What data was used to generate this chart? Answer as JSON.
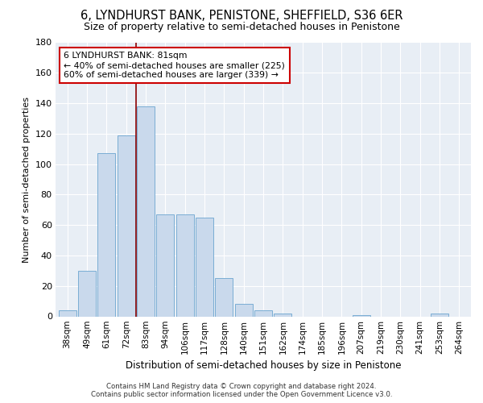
{
  "title": "6, LYNDHURST BANK, PENISTONE, SHEFFIELD, S36 6ER",
  "subtitle": "Size of property relative to semi-detached houses in Penistone",
  "xlabel": "Distribution of semi-detached houses by size in Penistone",
  "ylabel": "Number of semi-detached properties",
  "bins": [
    "38sqm",
    "49sqm",
    "61sqm",
    "72sqm",
    "83sqm",
    "94sqm",
    "106sqm",
    "117sqm",
    "128sqm",
    "140sqm",
    "151sqm",
    "162sqm",
    "174sqm",
    "185sqm",
    "196sqm",
    "207sqm",
    "219sqm",
    "230sqm",
    "241sqm",
    "253sqm",
    "264sqm"
  ],
  "values": [
    4,
    30,
    107,
    119,
    138,
    67,
    67,
    65,
    25,
    8,
    4,
    2,
    0,
    0,
    0,
    1,
    0,
    0,
    0,
    2,
    0
  ],
  "bar_color": "#c9d9ec",
  "bar_edge_color": "#7aadd4",
  "annotation_text_line1": "6 LYNDHURST BANK: 81sqm",
  "annotation_text_line2": "← 40% of semi-detached houses are smaller (225)",
  "annotation_text_line3": "60% of semi-detached houses are larger (339) →",
  "ylim": [
    0,
    180
  ],
  "yticks": [
    0,
    20,
    40,
    60,
    80,
    100,
    120,
    140,
    160,
    180
  ],
  "footer_line1": "Contains HM Land Registry data © Crown copyright and database right 2024.",
  "footer_line2": "Contains public sector information licensed under the Open Government Licence v3.0.",
  "bg_color": "#e8eef5",
  "title_fontsize": 10.5,
  "subtitle_fontsize": 9
}
